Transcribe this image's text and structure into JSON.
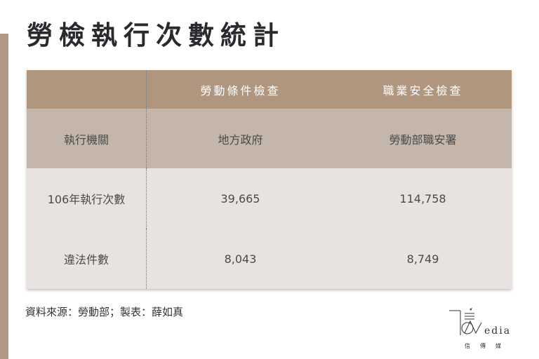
{
  "title": "勞檢執行次數統計",
  "table": {
    "headers": [
      "",
      "勞動條件檢查",
      "職業安全檢查"
    ],
    "rows": [
      [
        "執行機關",
        "地方政府",
        "勞動部職安署"
      ],
      [
        "106年執行次數",
        "39,665",
        "114,758"
      ],
      [
        "違法件數",
        "8,043",
        "8,749"
      ]
    ]
  },
  "source": "資料來源：勞動部；製表：薛如真",
  "logo": {
    "text": "Media",
    "sub": "信 傳 媒"
  },
  "colors": {
    "accent": "#b0967e",
    "row_mid": "#c4b6aa",
    "row_light": "#e8e3e1"
  }
}
